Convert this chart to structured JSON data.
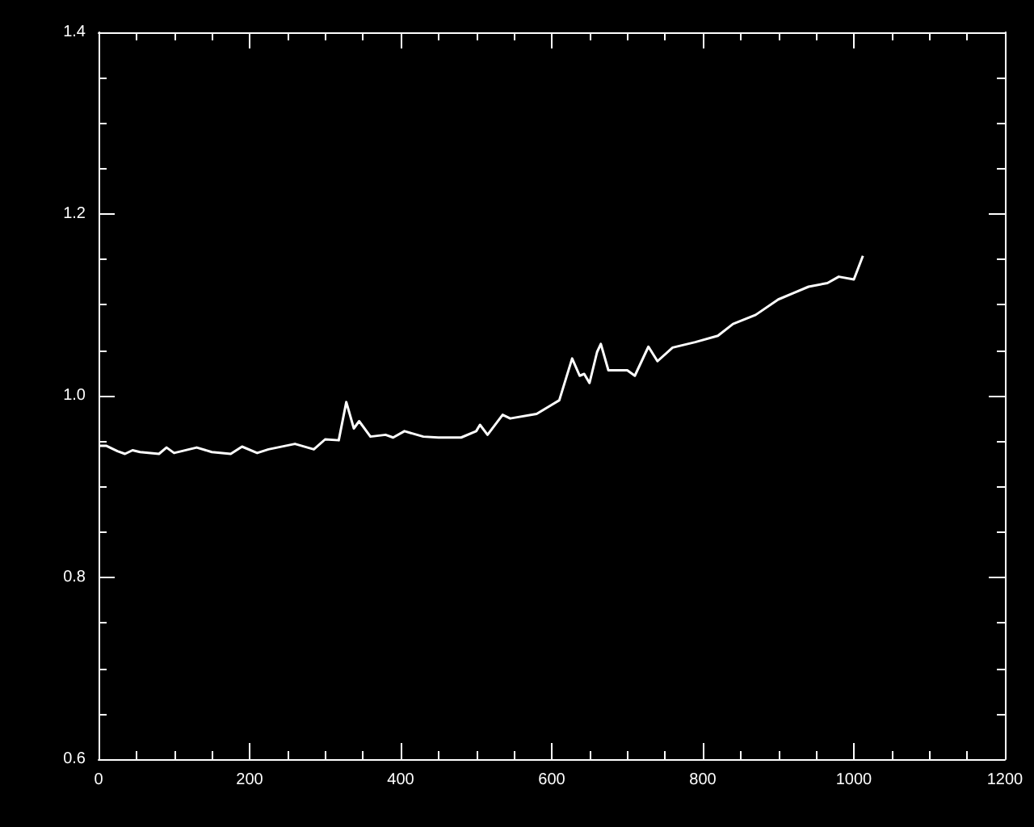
{
  "chart_data": {
    "type": "line",
    "x": [
      0,
      10,
      25,
      35,
      45,
      55,
      80,
      90,
      100,
      130,
      150,
      175,
      190,
      210,
      225,
      260,
      285,
      300,
      318,
      328,
      338,
      345,
      360,
      380,
      390,
      405,
      430,
      450,
      480,
      500,
      505,
      515,
      535,
      545,
      580,
      600,
      610,
      627,
      637,
      643,
      650,
      660,
      665,
      675,
      700,
      710,
      728,
      740,
      760,
      790,
      820,
      840,
      870,
      900,
      920,
      940,
      965,
      980,
      1000,
      1012
    ],
    "series": [
      {
        "color": "#ffffff",
        "values": [
          0.945,
          0.945,
          0.939,
          0.936,
          0.94,
          0.938,
          0.936,
          0.943,
          0.937,
          0.943,
          0.938,
          0.936,
          0.944,
          0.937,
          0.941,
          0.947,
          0.941,
          0.952,
          0.951,
          0.993,
          0.964,
          0.972,
          0.955,
          0.957,
          0.954,
          0.961,
          0.955,
          0.954,
          0.954,
          0.961,
          0.968,
          0.957,
          0.979,
          0.975,
          0.98,
          0.99,
          0.995,
          1.041,
          1.022,
          1.024,
          1.014,
          1.048,
          1.057,
          1.028,
          1.028,
          1.022,
          1.054,
          1.038,
          1.053,
          1.059,
          1.066,
          1.079,
          1.089,
          1.106,
          1.113,
          1.12,
          1.124,
          1.131,
          1.128,
          1.154
        ]
      }
    ],
    "xlim": [
      0,
      1200
    ],
    "xticks": [
      0,
      200,
      400,
      600,
      800,
      1000,
      1200
    ],
    "ylim": [
      0.6,
      1.4
    ],
    "yticks": [
      0.6,
      0.8,
      {
        "value": 1.0,
        "label": "1.0"
      },
      1.2,
      1.4
    ],
    "marker": "none",
    "line_style": "solid"
  }
}
